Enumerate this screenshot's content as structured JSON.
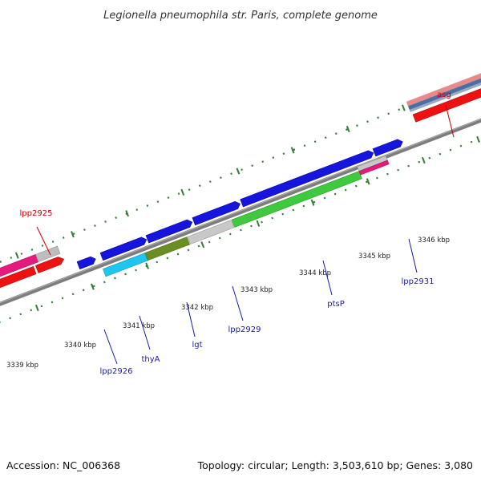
{
  "title": "Legionella pneumophila str. Paris, complete genome",
  "footer": {
    "accession": "Accession: NC_006368",
    "summary": "Topology: circular; Length: 3,503,610 bp; Genes: 3,080"
  },
  "colors": {
    "backbone": "#808080",
    "tick": "#2e7d32",
    "blue_label": "#1a1aa8",
    "red_label": "#cc0000"
  },
  "scale_ticks": [
    {
      "name": "tick-3339-kbp",
      "text": "3339 kbp"
    },
    {
      "name": "tick-3340-kbp",
      "text": "3340 kbp"
    },
    {
      "name": "tick-3341-kbp",
      "text": "3341 kbp"
    },
    {
      "name": "tick-3342-kbp",
      "text": "3342 kbp"
    },
    {
      "name": "tick-3343-kbp",
      "text": "3343 kbp"
    },
    {
      "name": "tick-3344-kbp",
      "text": "3344 kbp"
    },
    {
      "name": "tick-3345-kbp",
      "text": "3345 kbp"
    },
    {
      "name": "tick-3346-kbp",
      "text": "3346 kbp"
    }
  ],
  "gene_labels": [
    {
      "name": "gene-label-lpp2925",
      "text": "lpp2925",
      "color": "#cc0000"
    },
    {
      "name": "gene-label-asg",
      "text": "asg",
      "color": "#cc0000"
    },
    {
      "name": "gene-label-lpp2926",
      "text": "lpp2926",
      "color": "#1a1aa8"
    },
    {
      "name": "gene-label-thya",
      "text": "thyA",
      "color": "#1a1aa8"
    },
    {
      "name": "gene-label-lgt",
      "text": "lgt",
      "color": "#1a1aa8"
    },
    {
      "name": "gene-label-lpp2929",
      "text": "lpp2929",
      "color": "#1a1aa8"
    },
    {
      "name": "gene-label-ptsp",
      "text": "ptsP",
      "color": "#1a1aa8"
    },
    {
      "name": "gene-label-lpp2931",
      "text": "lpp2931",
      "color": "#1a1aa8"
    }
  ]
}
